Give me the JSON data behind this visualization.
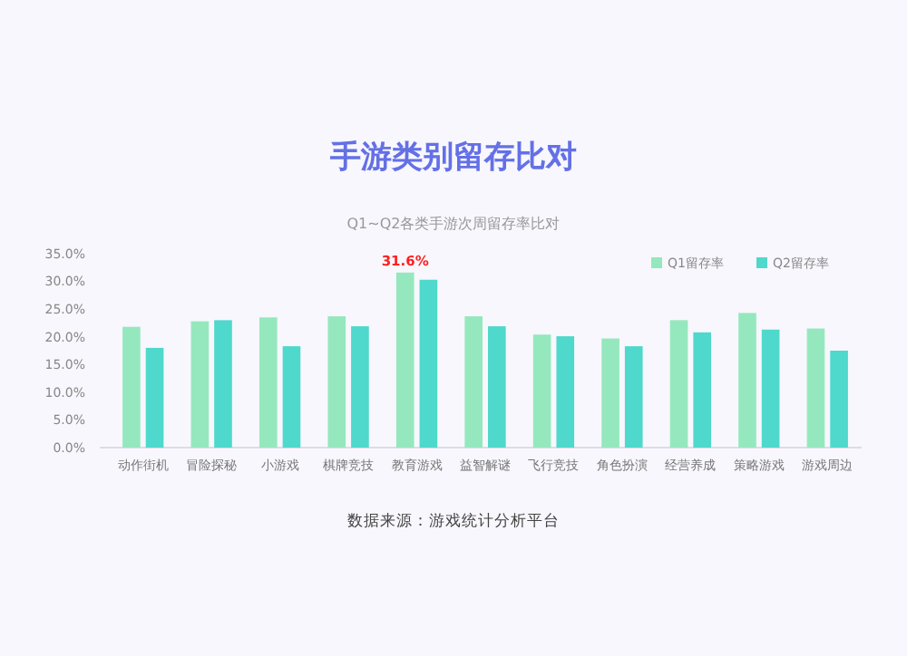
{
  "chart_data": {
    "type": "bar",
    "title": "手游类别留存比对",
    "subtitle": "Q1~Q2各类手游次周留存率比对",
    "categories": [
      "动作街机",
      "冒险探秘",
      "小游戏",
      "棋牌竞技",
      "教育游戏",
      "益智解谜",
      "飞行竞技",
      "角色扮演",
      "经营养成",
      "策略游戏",
      "游戏周边"
    ],
    "series": [
      {
        "name": "Q1留存率",
        "color": "#95e8bd",
        "values": [
          21.8,
          22.8,
          23.5,
          23.7,
          31.6,
          23.7,
          20.4,
          19.7,
          23,
          24.3,
          21.5
        ],
        "value_labels": [
          null,
          null,
          null,
          null,
          "31.6%",
          null,
          null,
          null,
          null,
          null,
          null
        ]
      },
      {
        "name": "Q2留存率",
        "color": "#4fd8cc",
        "values": [
          18,
          23,
          18.3,
          21.9,
          30.3,
          21.9,
          20.1,
          18.3,
          20.8,
          21.3,
          17.5
        ]
      }
    ],
    "ylim": [
      0,
      35
    ],
    "yticks": [
      {
        "value": 0,
        "label": "0.0%"
      },
      {
        "value": 5,
        "label": "5.0%"
      },
      {
        "value": 10,
        "label": "10.0%"
      },
      {
        "value": 15,
        "label": "15.0%"
      },
      {
        "value": 20,
        "label": "20.0%"
      },
      {
        "value": 25,
        "label": "25.0%"
      },
      {
        "value": 30,
        "label": "30.0%"
      },
      {
        "value": 35,
        "label": "35.0%"
      }
    ],
    "grid": false,
    "legend": "top right",
    "annotations": [
      "数据来源：游戏统计分析平台"
    ]
  }
}
